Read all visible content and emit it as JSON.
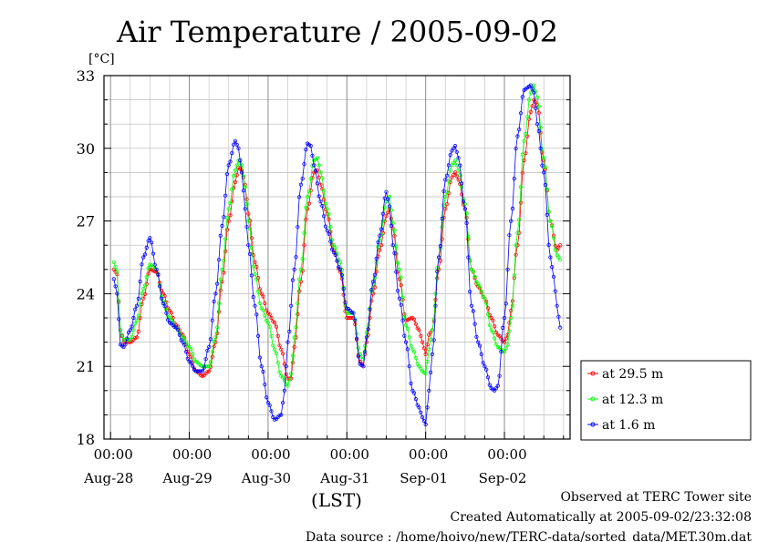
{
  "chart_data": {
    "type": "line",
    "title": "Air Temperature / 2005-09-02",
    "ylabel_unit": "[°C]",
    "xlabel": "(LST)",
    "ylim": [
      18,
      33
    ],
    "y_ticks": [
      "18",
      "21",
      "24",
      "27",
      "30",
      "33"
    ],
    "x_range_hours_note": "",
    "x_tick_time_label": "00:00",
    "x_day_labels": [
      "Aug-28",
      "Aug-29",
      "Aug-30",
      "Aug-31",
      "Sep-01",
      "Sep-02"
    ],
    "grid": true,
    "legend_position": "right",
    "series": [
      {
        "name": "at 29.5 m",
        "color": "#ff0000",
        "anchors": [
          [
            -23,
            25.0
          ],
          [
            -22,
            24.8
          ],
          [
            -21,
            22.5
          ],
          [
            -20,
            22.0
          ],
          [
            -18,
            22.0
          ],
          [
            -16,
            22.2
          ],
          [
            -14,
            23.8
          ],
          [
            -12,
            25.0
          ],
          [
            -10,
            24.9
          ],
          [
            -8,
            24.0
          ],
          [
            -6,
            23.3
          ],
          [
            -4,
            22.7
          ],
          [
            -2,
            22.3
          ],
          [
            0,
            21.5
          ],
          [
            2,
            20.8
          ],
          [
            4,
            20.6
          ],
          [
            6,
            20.8
          ],
          [
            8,
            22.0
          ],
          [
            10,
            24.5
          ],
          [
            12,
            27.0
          ],
          [
            14,
            28.6
          ],
          [
            15,
            29.2
          ],
          [
            16,
            29.1
          ],
          [
            17,
            28.5
          ],
          [
            18,
            27.3
          ],
          [
            20,
            25.3
          ],
          [
            22,
            24.0
          ],
          [
            24,
            23.2
          ],
          [
            26,
            22.8
          ],
          [
            28,
            21.7
          ],
          [
            30,
            20.5
          ],
          [
            31,
            20.5
          ],
          [
            32,
            21.8
          ],
          [
            34,
            24.5
          ],
          [
            36,
            27.5
          ],
          [
            38,
            29.0
          ],
          [
            39,
            29.1
          ],
          [
            40,
            28.5
          ],
          [
            42,
            27.3
          ],
          [
            44,
            25.8
          ],
          [
            46,
            24.9
          ],
          [
            48,
            23.0
          ],
          [
            50,
            23.0
          ],
          [
            52,
            21.2
          ],
          [
            53,
            21.0
          ],
          [
            54,
            22.0
          ],
          [
            56,
            24.0
          ],
          [
            58,
            25.8
          ],
          [
            60,
            27.2
          ],
          [
            61,
            27.5
          ],
          [
            62,
            26.7
          ],
          [
            64,
            24.6
          ],
          [
            66,
            22.9
          ],
          [
            68,
            23.0
          ],
          [
            70,
            22.5
          ],
          [
            71,
            22.0
          ],
          [
            72,
            21.5
          ],
          [
            73,
            22.3
          ],
          [
            74,
            22.5
          ],
          [
            76,
            25.0
          ],
          [
            78,
            27.5
          ],
          [
            80,
            28.8
          ],
          [
            81,
            29.0
          ],
          [
            82,
            28.7
          ],
          [
            84,
            27.5
          ],
          [
            86,
            25.0
          ],
          [
            88,
            24.3
          ],
          [
            90,
            23.8
          ],
          [
            92,
            23.0
          ],
          [
            94,
            22.3
          ],
          [
            96,
            22.0
          ],
          [
            97,
            22.3
          ],
          [
            98,
            23.3
          ],
          [
            100,
            26.0
          ],
          [
            102,
            29.5
          ],
          [
            104,
            31.5
          ],
          [
            105,
            32.0
          ],
          [
            106,
            31.8
          ],
          [
            108,
            29.5
          ],
          [
            110,
            27.0
          ],
          [
            112,
            25.8
          ],
          [
            113,
            26.0
          ]
        ]
      },
      {
        "name": "at 12.3 m",
        "color": "#00ff00",
        "anchors": [
          [
            -23,
            25.3
          ],
          [
            -22,
            24.9
          ],
          [
            -21,
            22.5
          ],
          [
            -20,
            22.1
          ],
          [
            -18,
            22.1
          ],
          [
            -16,
            22.9
          ],
          [
            -14,
            24.2
          ],
          [
            -12,
            25.2
          ],
          [
            -10,
            25.0
          ],
          [
            -8,
            23.7
          ],
          [
            -6,
            23.0
          ],
          [
            -4,
            22.6
          ],
          [
            -2,
            22.2
          ],
          [
            0,
            21.8
          ],
          [
            2,
            21.2
          ],
          [
            4,
            21.0
          ],
          [
            6,
            21.0
          ],
          [
            8,
            22.2
          ],
          [
            10,
            25.0
          ],
          [
            12,
            27.5
          ],
          [
            14,
            29.1
          ],
          [
            15,
            29.5
          ],
          [
            16,
            29.3
          ],
          [
            17,
            28.4
          ],
          [
            18,
            27.0
          ],
          [
            20,
            24.8
          ],
          [
            22,
            23.4
          ],
          [
            24,
            22.8
          ],
          [
            26,
            21.7
          ],
          [
            28,
            20.6
          ],
          [
            30,
            20.2
          ],
          [
            31,
            20.7
          ],
          [
            32,
            22.2
          ],
          [
            34,
            25.0
          ],
          [
            36,
            28.0
          ],
          [
            38,
            29.5
          ],
          [
            39,
            29.6
          ],
          [
            40,
            29.0
          ],
          [
            42,
            27.5
          ],
          [
            44,
            26.0
          ],
          [
            46,
            25.3
          ],
          [
            48,
            23.2
          ],
          [
            50,
            23.2
          ],
          [
            52,
            21.5
          ],
          [
            53,
            21.3
          ],
          [
            54,
            22.4
          ],
          [
            56,
            24.4
          ],
          [
            58,
            26.2
          ],
          [
            60,
            27.8
          ],
          [
            61,
            28.0
          ],
          [
            62,
            26.9
          ],
          [
            64,
            25.0
          ],
          [
            66,
            22.7
          ],
          [
            68,
            21.7
          ],
          [
            70,
            21.0
          ],
          [
            71,
            20.8
          ],
          [
            72,
            20.7
          ],
          [
            73,
            21.7
          ],
          [
            74,
            22.5
          ],
          [
            76,
            25.5
          ],
          [
            78,
            28.0
          ],
          [
            80,
            29.3
          ],
          [
            81,
            29.5
          ],
          [
            82,
            29.1
          ],
          [
            84,
            27.7
          ],
          [
            86,
            25.0
          ],
          [
            88,
            24.4
          ],
          [
            90,
            23.8
          ],
          [
            92,
            22.5
          ],
          [
            94,
            21.8
          ],
          [
            96,
            21.6
          ],
          [
            97,
            21.9
          ],
          [
            98,
            23.0
          ],
          [
            100,
            26.5
          ],
          [
            102,
            30.3
          ],
          [
            104,
            32.3
          ],
          [
            105,
            32.6
          ],
          [
            106,
            32.1
          ],
          [
            108,
            29.6
          ],
          [
            110,
            27.0
          ],
          [
            112,
            25.6
          ],
          [
            113,
            25.4
          ]
        ]
      },
      {
        "name": "at 1.6 m",
        "color": "#0000ff",
        "anchors": [
          [
            -23,
            24.6
          ],
          [
            -22,
            24.0
          ],
          [
            -21,
            21.9
          ],
          [
            -20,
            21.8
          ],
          [
            -18,
            22.5
          ],
          [
            -16,
            23.5
          ],
          [
            -14,
            25.5
          ],
          [
            -12,
            26.3
          ],
          [
            -10,
            25.0
          ],
          [
            -8,
            23.6
          ],
          [
            -6,
            22.8
          ],
          [
            -4,
            22.6
          ],
          [
            -2,
            22.0
          ],
          [
            0,
            21.2
          ],
          [
            2,
            20.8
          ],
          [
            4,
            20.8
          ],
          [
            6,
            21.8
          ],
          [
            8,
            24.0
          ],
          [
            10,
            26.8
          ],
          [
            12,
            29.3
          ],
          [
            14,
            30.3
          ],
          [
            15,
            30.0
          ],
          [
            16,
            29.0
          ],
          [
            17,
            27.5
          ],
          [
            18,
            26.0
          ],
          [
            20,
            23.5
          ],
          [
            22,
            21.0
          ],
          [
            24,
            19.5
          ],
          [
            26,
            18.8
          ],
          [
            28,
            19.0
          ],
          [
            29,
            20.0
          ],
          [
            30,
            22.0
          ],
          [
            32,
            25.0
          ],
          [
            34,
            28.5
          ],
          [
            36,
            30.2
          ],
          [
            37,
            30.1
          ],
          [
            38,
            29.3
          ],
          [
            40,
            27.8
          ],
          [
            42,
            26.6
          ],
          [
            44,
            25.7
          ],
          [
            46,
            25.0
          ],
          [
            48,
            23.4
          ],
          [
            50,
            23.2
          ],
          [
            52,
            21.1
          ],
          [
            53,
            21.0
          ],
          [
            54,
            22.2
          ],
          [
            56,
            24.5
          ],
          [
            58,
            26.4
          ],
          [
            60,
            28.2
          ],
          [
            61,
            27.6
          ],
          [
            62,
            26.0
          ],
          [
            64,
            23.8
          ],
          [
            66,
            22.0
          ],
          [
            68,
            20.0
          ],
          [
            70,
            19.3
          ],
          [
            71,
            18.9
          ],
          [
            72,
            18.6
          ],
          [
            73,
            20.0
          ],
          [
            74,
            21.5
          ],
          [
            76,
            25.5
          ],
          [
            78,
            28.7
          ],
          [
            80,
            29.9
          ],
          [
            81,
            30.1
          ],
          [
            82,
            29.6
          ],
          [
            84,
            27.5
          ],
          [
            86,
            23.5
          ],
          [
            88,
            22.0
          ],
          [
            90,
            21.0
          ],
          [
            92,
            20.1
          ],
          [
            93,
            20.0
          ],
          [
            94,
            20.2
          ],
          [
            96,
            23.0
          ],
          [
            98,
            27.0
          ],
          [
            100,
            30.5
          ],
          [
            102,
            32.4
          ],
          [
            103,
            32.5
          ],
          [
            104,
            32.6
          ],
          [
            105,
            32.3
          ],
          [
            106,
            31.0
          ],
          [
            108,
            29.0
          ],
          [
            110,
            25.5
          ],
          [
            111,
            24.7
          ],
          [
            112,
            23.5
          ],
          [
            113,
            22.6
          ]
        ]
      }
    ]
  },
  "footer": {
    "line1": "Observed at TERC Tower site",
    "line2": "Created Automatically at 2005-09-02/23:32:08",
    "line3": "Data source : /home/hoivo/new/TERC-data/sorted_data/MET.30m.dat"
  }
}
